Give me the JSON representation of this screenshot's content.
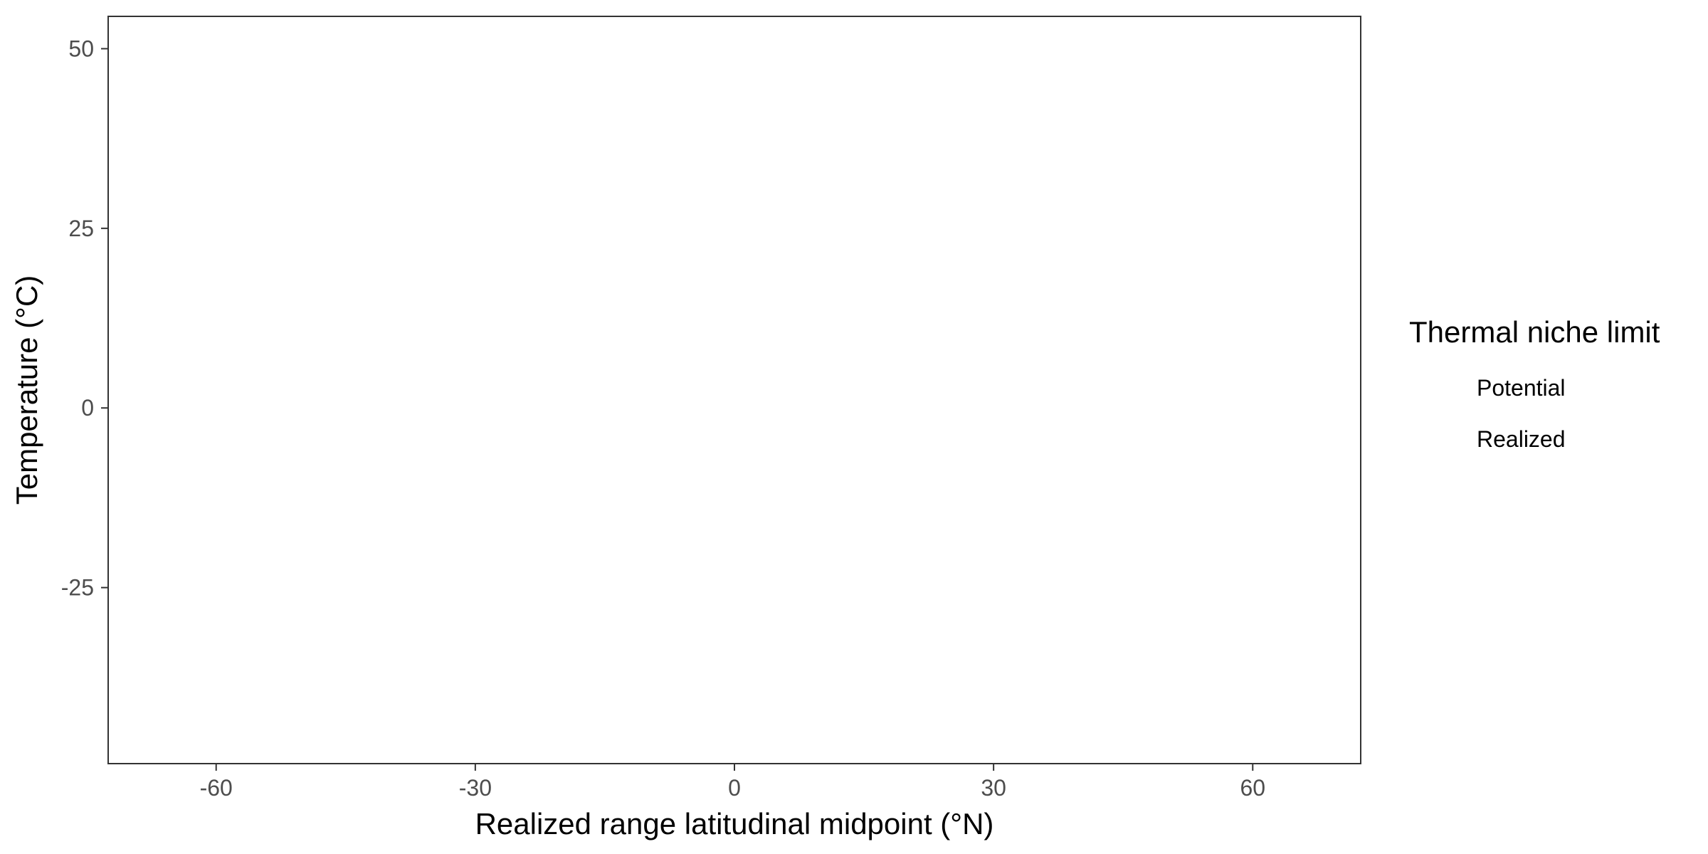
{
  "chart_data": {
    "type": "scatter",
    "title": "",
    "xlabel": "Realized range latitudinal midpoint (°N)",
    "ylabel": "Temperature (°C)",
    "xlim": [
      -72.5,
      72.5
    ],
    "ylim": [
      -49.5,
      54.5
    ],
    "xticks": [
      -60,
      -30,
      0,
      30,
      60
    ],
    "yticks": [
      -25,
      0,
      25,
      50
    ],
    "xtick_labels": [
      "-60",
      "-30",
      "0",
      "30",
      "60"
    ],
    "ytick_labels": [
      "-25",
      "0",
      "25",
      "50"
    ],
    "grid": false,
    "legend": {
      "title": "Thermal niche limit",
      "position": "right",
      "entries": [
        "Potential",
        "Realized"
      ]
    },
    "series": [
      {
        "name": "Potential",
        "x": [],
        "y": []
      },
      {
        "name": "Realized",
        "x": [],
        "y": []
      }
    ]
  }
}
